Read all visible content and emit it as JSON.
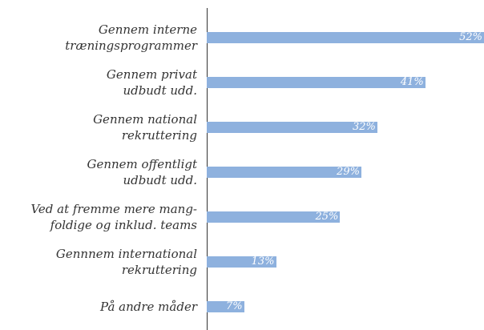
{
  "chart_data": {
    "type": "bar",
    "orientation": "horizontal",
    "categories": [
      "Gennem interne\ntræningsprogrammer",
      "Gennem privat\nudbudt udd.",
      "Gennem national\nrekruttering",
      "Gennem offentligt\nudbudt udd.",
      "Ved at fremme mere mang-\nfoldige og inklud. teams",
      "Gennnem international\nrekruttering",
      "På andre måder"
    ],
    "values": [
      52,
      41,
      32,
      29,
      25,
      13,
      7
    ],
    "value_labels": [
      "52%",
      "41%",
      "32%",
      "29%",
      "25%",
      "13%",
      "7%"
    ],
    "color": "#8eb1de"
  }
}
